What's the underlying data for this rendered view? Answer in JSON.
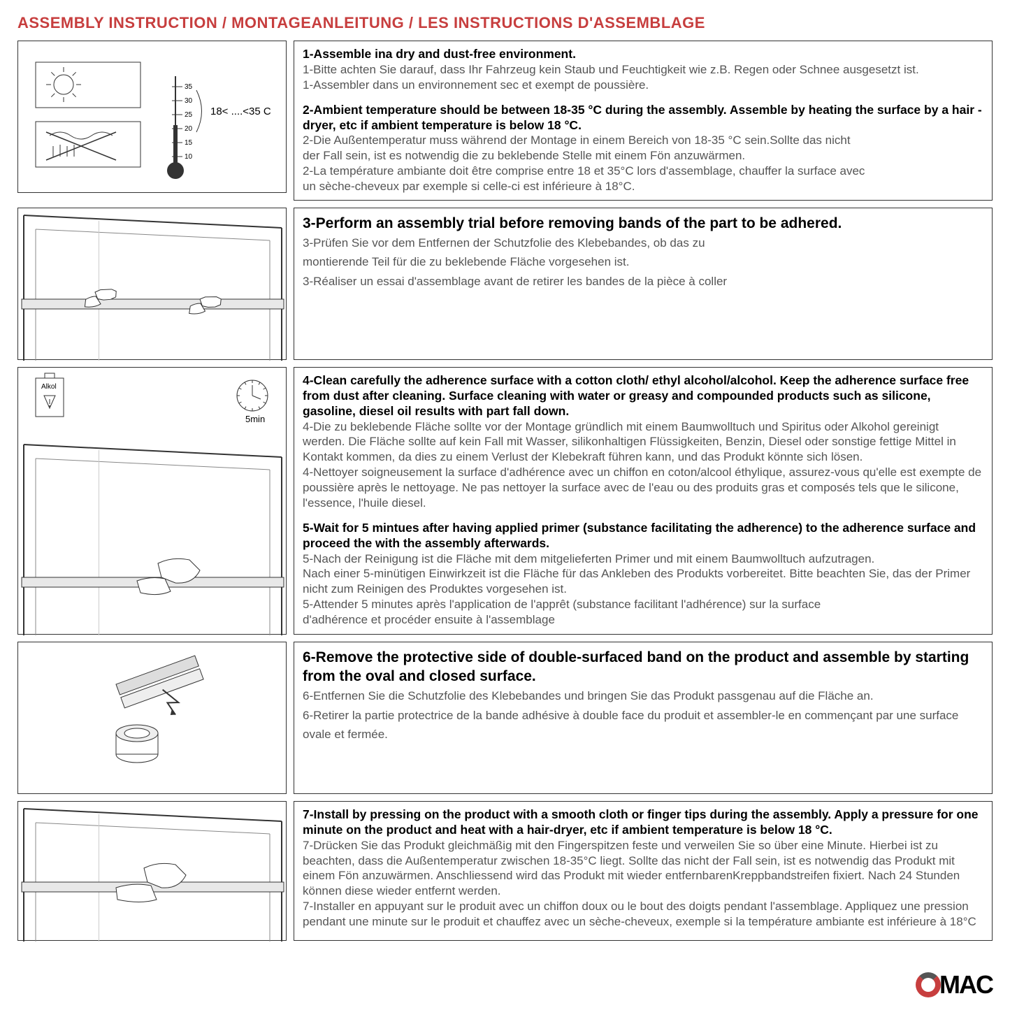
{
  "title": "ASSEMBLY INSTRUCTION / MONTAGEANLEITUNG / LES INSTRUCTIONS D'ASSEMBLAGE",
  "colors": {
    "title": "#c73e3e",
    "border": "#333333",
    "subtext": "#555555",
    "logo_ring": "#c73e3e",
    "logo_ring_dark": "#555555"
  },
  "thermometer": {
    "label": "18< ....<35 C",
    "scale": [
      10,
      15,
      20,
      25,
      30,
      35
    ]
  },
  "clock": {
    "label": "5min"
  },
  "alcohol": {
    "label": "Alkol"
  },
  "rows": [
    {
      "illus_w": 385,
      "illus_h": 218,
      "steps": [
        {
          "head": "1-Assemble ina dry and dust-free environment.",
          "lines": [
            "1-Bitte achten Sie darauf, dass Ihr Fahrzeug kein Staub und Feuchtigkeit wie z.B. Regen oder Schnee ausgesetzt ist.",
            "1-Assembler dans un environnement sec et exempt de poussière."
          ]
        },
        {
          "head": "2-Ambient temperature should be between 18-35 °C  during the assembly. Assemble by heating the surface by a hair -dryer, etc if ambient temperature is below 18 °C.",
          "lines": [
            "2-Die Außentemperatur muss während der Montage in einem Bereich von 18-35 °C  sein.Sollte das nicht",
            "der Fall sein, ist es notwendig die zu beklebende Stelle mit einem Fön anzuwärmen.",
            "2-La température ambiante doit être comprise entre 18 et 35°C lors d'assemblage, chauffer la surface avec",
            " un sèche-cheveux par exemple si celle-ci est inférieure à 18°C."
          ]
        }
      ]
    },
    {
      "illus_w": 385,
      "illus_h": 218,
      "steps": [
        {
          "head": "3-Perform an assembly trial before removing bands of the part to be adhered.",
          "lines": [
            "3-Prüfen Sie vor dem Entfernen der Schutzfolie des Klebebandes, ob das zu",
            "montierende Teil für die zu beklebende Fläche vorgesehen ist.",
            "3-Réaliser un essai d'assemblage avant de retirer les bandes de la pièce à coller"
          ]
        }
      ],
      "large_text": true
    },
    {
      "illus_w": 385,
      "illus_h": 383,
      "steps": [
        {
          "head": "4-Clean carefully the adherence surface with a cotton cloth/ ethyl alcohol/alcohol. Keep the adherence surface free from dust after cleaning. Surface cleaning with water or greasy and compounded products such as silicone, gasoline, diesel oil results with part fall down.",
          "lines": [
            "4-Die zu beklebende Fläche sollte vor der Montage gründlich mit einem Baumwolltuch und Spiritus oder Alkohol gereinigt werden. Die Fläche sollte auf kein Fall mit Wasser, silikonhaltigen Flüssigkeiten, Benzin, Diesel oder sonstige fettige Mittel in Kontakt kommen, da dies zu einem Verlust der Klebekraft führen kann, und das Produkt könnte sich lösen.",
            "4-Nettoyer soigneusement la surface d'adhérence avec un chiffon en coton/alcool éthylique, assurez-vous qu'elle est exempte de poussière après le nettoyage. Ne pas nettoyer la surface avec de l'eau ou des produits gras et composés tels que le silicone, l'essence, l'huile diesel."
          ]
        },
        {
          "head": "5-Wait for 5 mintues after having applied primer (substance facilitating the adherence) to the adherence surface and proceed the with the assembly afterwards.",
          "lines": [
            "5-Nach der Reinigung ist die Fläche mit dem mitgelieferten Primer und mit einem Baumwolltuch aufzutragen.",
            "Nach einer 5-minütigen Einwirkzeit ist die Fläche für das Ankleben des Produkts vorbereitet. Bitte beachten Sie, das der Primer nicht zum Reinigen des Produktes vorgesehen ist.",
            "5-Attender 5 minutes après l'application de l'apprêt (substance facilitant l'adhérence) sur la surface",
            "d'adhérence et procéder ensuite à l'assemblage"
          ]
        }
      ]
    },
    {
      "illus_w": 385,
      "illus_h": 218,
      "steps": [
        {
          "head": "6-Remove the protective side of double-surfaced band on the product and assemble by starting from the oval and closed surface.",
          "lines": [
            "6-Entfernen Sie die Schutzfolie des Klebebandes und bringen Sie das Produkt passgenau auf die Fläche an.",
            "6-Retirer la partie protectrice de la bande adhésive à double face du produit et assembler-le en commençant par une surface ovale et fermée."
          ]
        }
      ],
      "large_text": true
    },
    {
      "illus_w": 385,
      "illus_h": 200,
      "steps": [
        {
          "head": "7-Install by pressing on the product with a smooth cloth or finger tips during the assembly. Apply a pressure for one minute on the product and heat with a hair-dryer, etc if ambient temperature is below 18 °C.",
          "lines": [
            "7-Drücken Sie das Produkt gleichmäßig mit den Fingerspitzen feste und verweilen Sie so über eine Minute. Hierbei ist zu beachten, dass die Außentemperatur zwischen 18-35°C liegt. Sollte das nicht der Fall sein, ist es notwendig das Produkt mit einem Fön anzuwärmen. Anschliessend wird das Produkt mit wieder entfernbarenKreppbandstreifen fixiert. Nach 24 Stunden können diese wieder entfernt werden.",
            "7-Installer en appuyant sur le produit avec un chiffon doux ou le bout des doigts pendant l'assemblage. Appliquez  une pression pendant une minute sur le produit et chauffez avec un sèche-cheveux, exemple si la température ambiante est inférieure à 18°C"
          ]
        }
      ]
    }
  ],
  "logo": {
    "text": "MAC"
  }
}
